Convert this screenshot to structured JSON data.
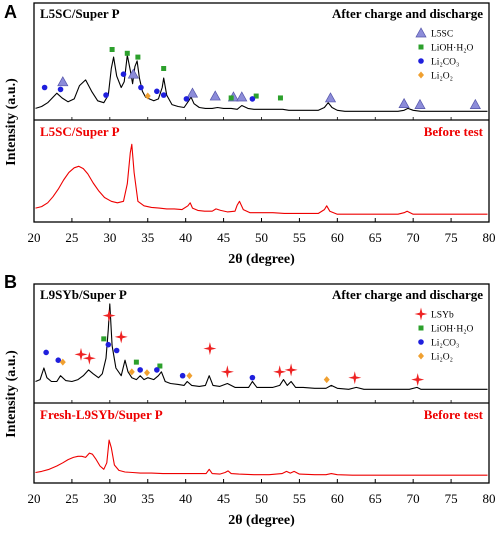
{
  "figure": {
    "ylabel": "Intensity (a.u.)",
    "xlabel": "2θ (degree)"
  },
  "chart_data": [
    {
      "type": "line",
      "panel_letter": "A",
      "xlim": [
        20,
        80
      ],
      "xticks": [
        20,
        25,
        30,
        35,
        40,
        45,
        50,
        55,
        60,
        65,
        70,
        75,
        80
      ],
      "xlabel": "2θ (degree)",
      "ylabel": "Intensity (a.u.)",
      "upper": {
        "left_label": "L5SC/Super P",
        "right_label": "After charge and discharge",
        "color": "#000000",
        "series": {
          "x": [
            20.2,
            21.0,
            21.8,
            22.3,
            23.0,
            23.7,
            24.5,
            25.3,
            26.0,
            26.8,
            27.6,
            28.4,
            29.2,
            29.8,
            30.2,
            30.5,
            30.9,
            31.5,
            31.9,
            32.3,
            32.7,
            33.0,
            33.3,
            33.6,
            33.9,
            34.3,
            34.7,
            35.2,
            35.8,
            36.4,
            36.9,
            37.1,
            37.5,
            38.2,
            39.0,
            39.8,
            40.4,
            40.7,
            41.1,
            41.8,
            42.6,
            43.5,
            44.2,
            45.0,
            46.0,
            46.8,
            47.4,
            48.2,
            49.0,
            50.0,
            51.0,
            52.0,
            52.8,
            53.6,
            54.5,
            55.5,
            56.5,
            57.5,
            58.3,
            58.8,
            59.3,
            60.0,
            61.0,
            62.0,
            63.0,
            64.0,
            65.0,
            66.0,
            67.0,
            68.0,
            68.8,
            69.3,
            70.0,
            71.0,
            72.0,
            73.0,
            74.0,
            75.0,
            76.0,
            77.0,
            78.0,
            79.0,
            79.8
          ],
          "y": [
            0.08,
            0.1,
            0.14,
            0.18,
            0.24,
            0.19,
            0.15,
            0.18,
            0.32,
            0.38,
            0.26,
            0.16,
            0.14,
            0.22,
            0.5,
            0.62,
            0.42,
            0.3,
            0.36,
            0.64,
            0.48,
            0.34,
            0.52,
            0.58,
            0.4,
            0.26,
            0.2,
            0.18,
            0.16,
            0.18,
            0.3,
            0.4,
            0.22,
            0.12,
            0.1,
            0.09,
            0.16,
            0.2,
            0.13,
            0.09,
            0.08,
            0.08,
            0.09,
            0.08,
            0.08,
            0.07,
            0.11,
            0.08,
            0.07,
            0.07,
            0.07,
            0.07,
            0.07,
            0.06,
            0.06,
            0.06,
            0.06,
            0.06,
            0.09,
            0.14,
            0.09,
            0.06,
            0.05,
            0.05,
            0.05,
            0.05,
            0.05,
            0.05,
            0.05,
            0.05,
            0.06,
            0.08,
            0.06,
            0.05,
            0.05,
            0.05,
            0.05,
            0.05,
            0.05,
            0.05,
            0.05,
            0.05,
            0.05
          ]
        },
        "markers": [
          {
            "label": "L5SC",
            "symbol": "triangle",
            "color": "#8c8cd9",
            "x": [
              23.8,
              33.1,
              40.9,
              43.9,
              46.3,
              47.4,
              59.1,
              68.8,
              70.9,
              78.2
            ],
            "y": [
              0.36,
              0.44,
              0.24,
              0.21,
              0.2,
              0.2,
              0.19,
              0.13,
              0.12,
              0.12
            ]
          },
          {
            "label": "LiOH·H2O",
            "symbol": "square",
            "color": "#2ca02c",
            "x": [
              30.3,
              32.3,
              33.7,
              37.1,
              46.0,
              49.3,
              52.5
            ],
            "y": [
              0.7,
              0.66,
              0.62,
              0.5,
              0.19,
              0.21,
              0.19
            ]
          },
          {
            "label": "Li2CO3",
            "symbol": "circle",
            "color": "#1f1fdd",
            "x": [
              21.4,
              23.5,
              29.5,
              31.8,
              34.1,
              36.2,
              37.1,
              40.1,
              48.8
            ],
            "y": [
              0.3,
              0.28,
              0.22,
              0.44,
              0.3,
              0.26,
              0.22,
              0.18,
              0.18
            ]
          },
          {
            "label": "Li2O2",
            "symbol": "diamond",
            "color": "#f0a030",
            "x": [
              35.0
            ],
            "y": [
              0.21
            ]
          }
        ]
      },
      "lower": {
        "left_label": "L5SC/Super P",
        "right_label": "Before test",
        "color": "#ee0000",
        "series": {
          "x": [
            20.2,
            21.0,
            21.8,
            22.5,
            23.2,
            23.9,
            24.6,
            25.3,
            25.9,
            26.5,
            27.1,
            27.8,
            28.5,
            29.3,
            30.2,
            31.0,
            31.8,
            32.3,
            32.7,
            32.9,
            33.2,
            33.7,
            34.5,
            35.5,
            36.5,
            37.5,
            38.5,
            39.5,
            40.3,
            40.6,
            40.9,
            41.6,
            42.5,
            43.5,
            44.0,
            44.6,
            45.5,
            46.5,
            46.8,
            47.1,
            47.6,
            48.5,
            50.0,
            51.5,
            53.0,
            54.5,
            56.0,
            57.5,
            58.3,
            58.6,
            59.0,
            60.0,
            62.0,
            64.0,
            66.0,
            68.0,
            68.8,
            69.2,
            70.0,
            72.0,
            74.0,
            76.0,
            78.0,
            79.8
          ],
          "y": [
            0.13,
            0.15,
            0.2,
            0.28,
            0.38,
            0.5,
            0.6,
            0.66,
            0.68,
            0.65,
            0.58,
            0.46,
            0.36,
            0.27,
            0.22,
            0.2,
            0.22,
            0.45,
            0.86,
            0.97,
            0.6,
            0.22,
            0.16,
            0.14,
            0.13,
            0.12,
            0.12,
            0.11,
            0.16,
            0.2,
            0.13,
            0.1,
            0.09,
            0.09,
            0.12,
            0.1,
            0.08,
            0.09,
            0.17,
            0.22,
            0.11,
            0.07,
            0.07,
            0.07,
            0.06,
            0.06,
            0.06,
            0.06,
            0.11,
            0.16,
            0.09,
            0.05,
            0.05,
            0.05,
            0.05,
            0.05,
            0.07,
            0.09,
            0.05,
            0.05,
            0.05,
            0.05,
            0.05,
            0.05
          ]
        }
      },
      "legend": [
        "L5SC",
        "LiOH·H₂O",
        "Li₂CO₃",
        "Li₂O₂"
      ]
    },
    {
      "type": "line",
      "panel_letter": "B",
      "xlim": [
        20,
        80
      ],
      "xticks": [
        20,
        25,
        30,
        35,
        40,
        45,
        50,
        55,
        60,
        65,
        70,
        75,
        80
      ],
      "xlabel": "2θ (degree)",
      "ylabel": "Intensity (a.u.)",
      "upper": {
        "left_label": "L9SYb/Super P",
        "right_label": "After charge and discharge",
        "color": "#000000",
        "series": {
          "x": [
            20.2,
            20.8,
            21.3,
            21.7,
            22.3,
            23.0,
            23.5,
            24.2,
            25.0,
            25.8,
            26.5,
            27.2,
            27.8,
            28.5,
            29.0,
            29.5,
            29.8,
            30.0,
            30.3,
            30.8,
            31.5,
            32.0,
            32.4,
            32.9,
            33.5,
            34.0,
            34.5,
            35.0,
            35.8,
            36.4,
            36.8,
            37.3,
            38.0,
            39.0,
            39.8,
            40.2,
            40.8,
            41.8,
            42.6,
            43.1,
            43.6,
            44.5,
            45.5,
            46.5,
            47.5,
            48.3,
            48.8,
            49.4,
            50.5,
            51.5,
            52.4,
            52.9,
            53.4,
            53.9,
            54.5,
            55.5,
            57.0,
            58.5,
            59.2,
            60.0,
            61.5,
            62.5,
            63.5,
            65.0,
            66.5,
            68.0,
            69.5,
            70.5,
            71.0,
            72.5,
            74.0,
            75.5,
            77.0,
            78.5,
            79.8
          ],
          "y": [
            0.18,
            0.2,
            0.32,
            0.22,
            0.18,
            0.18,
            0.24,
            0.19,
            0.18,
            0.2,
            0.24,
            0.3,
            0.26,
            0.22,
            0.26,
            0.42,
            0.72,
            0.98,
            0.55,
            0.32,
            0.24,
            0.4,
            0.28,
            0.22,
            0.2,
            0.24,
            0.2,
            0.22,
            0.2,
            0.24,
            0.28,
            0.18,
            0.16,
            0.15,
            0.14,
            0.18,
            0.14,
            0.13,
            0.14,
            0.24,
            0.14,
            0.13,
            0.16,
            0.12,
            0.12,
            0.12,
            0.18,
            0.12,
            0.12,
            0.12,
            0.14,
            0.2,
            0.14,
            0.18,
            0.12,
            0.12,
            0.11,
            0.11,
            0.14,
            0.11,
            0.1,
            0.12,
            0.1,
            0.1,
            0.1,
            0.1,
            0.1,
            0.12,
            0.1,
            0.1,
            0.1,
            0.1,
            0.1,
            0.1,
            0.1
          ]
        },
        "markers": [
          {
            "label": "LSYb",
            "symbol": "star",
            "color": "#ee2222",
            "x": [
              26.2,
              27.3,
              29.9,
              31.5,
              43.2,
              45.5,
              52.4,
              53.9,
              62.3,
              70.6
            ],
            "y": [
              0.46,
              0.42,
              0.86,
              0.64,
              0.52,
              0.28,
              0.28,
              0.3,
              0.22,
              0.2
            ]
          },
          {
            "label": "LiOH·H2O",
            "symbol": "square",
            "color": "#2ca02c",
            "x": [
              29.2,
              33.5,
              36.6
            ],
            "y": [
              0.62,
              0.38,
              0.34
            ]
          },
          {
            "label": "Li2CO3",
            "symbol": "circle",
            "color": "#1f1fdd",
            "x": [
              21.6,
              23.2,
              29.8,
              30.9,
              34.0,
              36.2,
              39.6,
              48.8
            ],
            "y": [
              0.48,
              0.4,
              0.56,
              0.5,
              0.3,
              0.3,
              0.24,
              0.22
            ]
          },
          {
            "label": "Li2O2",
            "symbol": "diamond",
            "color": "#f0a030",
            "x": [
              23.8,
              32.9,
              34.9,
              40.5,
              58.6
            ],
            "y": [
              0.38,
              0.28,
              0.27,
              0.24,
              0.2
            ]
          }
        ]
      },
      "lower": {
        "left_label": "Fresh-L9SYb/Super P",
        "right_label": "Before test",
        "color": "#ee0000",
        "series": {
          "x": [
            20.2,
            21.0,
            22.0,
            23.0,
            23.8,
            24.5,
            25.2,
            25.8,
            26.3,
            26.8,
            27.3,
            27.7,
            28.2,
            28.7,
            29.2,
            29.6,
            29.9,
            30.2,
            30.6,
            31.2,
            32.0,
            33.0,
            34.0,
            35.5,
            37.0,
            38.5,
            40.0,
            41.5,
            42.7,
            43.1,
            43.5,
            44.5,
            45.2,
            45.6,
            46.0,
            47.0,
            49.0,
            51.0,
            52.7,
            53.3,
            53.8,
            54.3,
            55.0,
            57.0,
            58.5,
            59.2,
            60.0,
            62.0,
            64.0,
            66.0,
            68.0,
            70.0,
            72.0,
            74.0,
            76.0,
            78.0,
            79.8
          ],
          "y": [
            0.12,
            0.14,
            0.18,
            0.24,
            0.3,
            0.36,
            0.4,
            0.42,
            0.42,
            0.4,
            0.48,
            0.46,
            0.36,
            0.24,
            0.18,
            0.3,
            0.72,
            0.58,
            0.26,
            0.16,
            0.13,
            0.12,
            0.11,
            0.11,
            0.1,
            0.1,
            0.1,
            0.1,
            0.1,
            0.18,
            0.1,
            0.09,
            0.12,
            0.15,
            0.1,
            0.09,
            0.08,
            0.08,
            0.1,
            0.14,
            0.11,
            0.14,
            0.09,
            0.08,
            0.08,
            0.1,
            0.08,
            0.07,
            0.07,
            0.07,
            0.07,
            0.07,
            0.07,
            0.07,
            0.07,
            0.07,
            0.07
          ]
        }
      },
      "legend": [
        "LSYb",
        "LiOH·H₂O",
        "Li₂CO₃",
        "Li₂O₂"
      ]
    }
  ]
}
